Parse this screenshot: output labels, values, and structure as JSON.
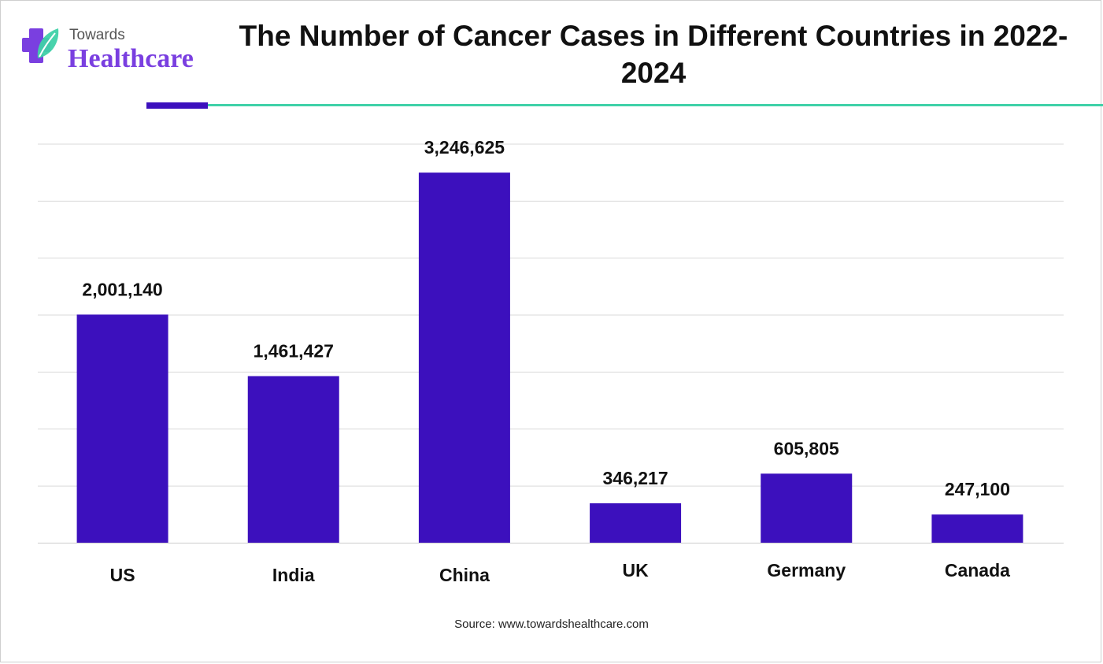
{
  "logo": {
    "small_text": "Towards",
    "big_text": "Healthcare"
  },
  "title": "The Number of Cancer Cases in Different Countries in 2022-2024",
  "source": "Source: www.towardshealthcare.com",
  "colors": {
    "bar": "#3c10bd",
    "accent_rule": "#3c10bd",
    "teal_rule": "#3fd1a8",
    "grid": "#d9d9d9",
    "logo_purple": "#7a3fe0",
    "logo_teal": "#3fd1a8"
  },
  "chart_data": {
    "type": "bar",
    "title": "The Number of Cancer Cases in Different Countries in 2022-2024",
    "categories": [
      "US",
      "India",
      "China",
      "UK",
      "Germany",
      "Canada"
    ],
    "values": [
      2001140,
      1461427,
      3246625,
      346217,
      605805,
      247100
    ],
    "value_labels": [
      "2,001,140",
      "1,461,427",
      "3,246,625",
      "346,217",
      "605,805",
      "247,100"
    ],
    "xlabel": "",
    "ylabel": "",
    "ylim": [
      0,
      3600000
    ],
    "grid": true,
    "legend": "none"
  }
}
